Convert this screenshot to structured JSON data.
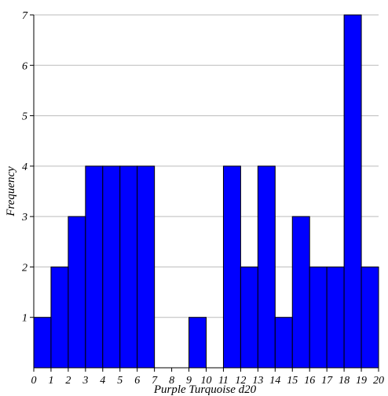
{
  "chart_data": {
    "type": "bar",
    "title": "",
    "xlabel": "Purple Turquoise d20",
    "ylabel": "Frequency",
    "bin_edges": [
      0,
      1,
      2,
      3,
      4,
      5,
      6,
      7,
      8,
      9,
      10,
      11,
      12,
      13,
      14,
      15,
      16,
      17,
      18,
      19,
      20
    ],
    "values": [
      1,
      2,
      3,
      4,
      4,
      4,
      4,
      0,
      0,
      1,
      0,
      4,
      2,
      4,
      1,
      3,
      2,
      2,
      7,
      2
    ],
    "xlim": [
      0,
      20
    ],
    "ylim": [
      0,
      7
    ],
    "xticks": [
      "0",
      "1",
      "2",
      "3",
      "4",
      "5",
      "6",
      "7",
      "8",
      "9",
      "10",
      "11",
      "12",
      "13",
      "14",
      "15",
      "16",
      "17",
      "18",
      "19",
      "20"
    ],
    "yticks": [
      "1",
      "2",
      "3",
      "4",
      "5",
      "6",
      "7"
    ],
    "grid": true,
    "bar_color": "#0000ff",
    "bar_edge_color": "#000000",
    "grid_color": "#bbbbbb"
  }
}
